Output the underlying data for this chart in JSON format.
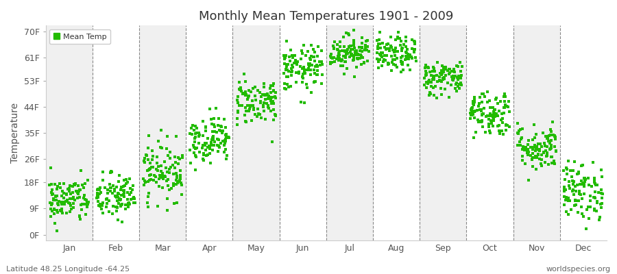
{
  "title": "Monthly Mean Temperatures 1901 - 2009",
  "ylabel": "Temperature",
  "xlabel_bottom_left": "Latitude 48.25 Longitude -64.25",
  "xlabel_bottom_right": "worldspecies.org",
  "legend_label": "Mean Temp",
  "dot_color": "#22bb00",
  "background_color": "#ffffff",
  "band_colors": [
    "#f0f0f0",
    "#ffffff"
  ],
  "yticks": [
    0,
    9,
    18,
    26,
    35,
    44,
    53,
    61,
    70
  ],
  "ytick_labels": [
    "0F",
    "9F",
    "18F",
    "26F",
    "35F",
    "44F",
    "53F",
    "61F",
    "70F"
  ],
  "months": [
    "Jan",
    "Feb",
    "Mar",
    "Apr",
    "May",
    "Jun",
    "Jul",
    "Aug",
    "Sep",
    "Oct",
    "Nov",
    "Dec"
  ],
  "month_mean_temps_F": [
    12,
    13,
    22,
    33,
    46,
    57,
    63,
    62,
    54,
    42,
    30,
    15
  ],
  "month_std_F": [
    4,
    4,
    5,
    4,
    4,
    4,
    3,
    3,
    3,
    4,
    4,
    5
  ],
  "n_years": 109,
  "seed": 42
}
